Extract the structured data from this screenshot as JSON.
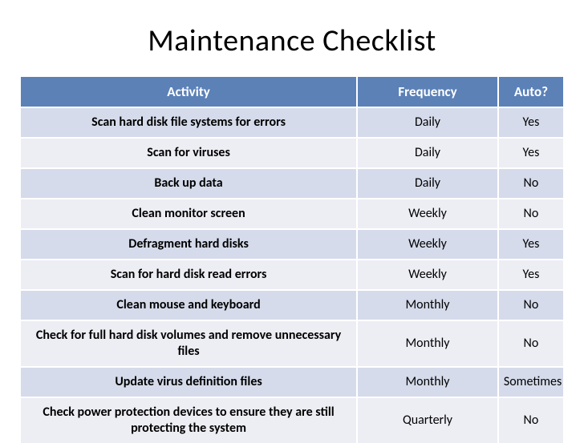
{
  "title": "Maintenance Checklist",
  "table": {
    "type": "table",
    "header_bg": "#5b81b7",
    "header_color": "#ffffff",
    "row_odd_bg": "#d5dbea",
    "row_even_bg": "#edeef4",
    "title_fontsize": 38,
    "header_fontsize": 17,
    "cell_fontsize": 16,
    "col_widths_pct": [
      62,
      26,
      12
    ],
    "columns": [
      "Activity",
      "Frequency",
      "Auto?"
    ],
    "rows": [
      [
        "Scan hard disk file systems for errors",
        "Daily",
        "Yes"
      ],
      [
        "Scan for viruses",
        "Daily",
        "Yes"
      ],
      [
        "Back up data",
        "Daily",
        "No"
      ],
      [
        "Clean monitor screen",
        "Weekly",
        "No"
      ],
      [
        "Defragment hard disks",
        "Weekly",
        "Yes"
      ],
      [
        "Scan for hard disk read errors",
        "Weekly",
        "Yes"
      ],
      [
        "Clean mouse and keyboard",
        "Monthly",
        "No"
      ],
      [
        "Check for full hard disk volumes and remove unnecessary files",
        "Monthly",
        "No"
      ],
      [
        "Update virus definition files",
        "Monthly",
        "Sometimes"
      ],
      [
        "Check power protection devices to ensure they are still protecting the system",
        "Quarterly",
        "No"
      ]
    ]
  }
}
